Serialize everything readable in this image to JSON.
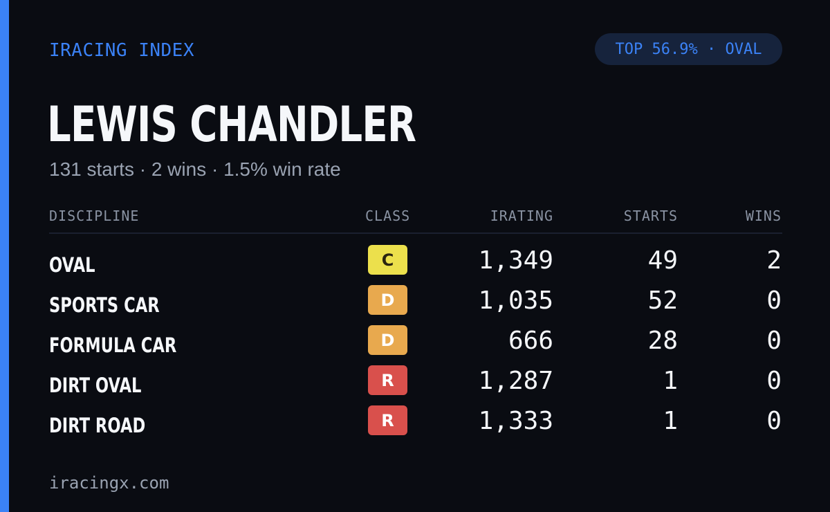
{
  "brand": "IRACING INDEX",
  "badge": "TOP 56.9% · OVAL",
  "driver": {
    "name": "LEWIS CHANDLER",
    "summary": "131 starts · 2 wins · 1.5% win rate"
  },
  "table": {
    "headers": {
      "discipline": "DISCIPLINE",
      "class": "CLASS",
      "irating": "IRATING",
      "starts": "STARTS",
      "wins": "WINS"
    },
    "rows": [
      {
        "discipline": "OVAL",
        "class": "C",
        "class_color": "#ece04c",
        "class_text_color": "#2a2410",
        "irating": "1,349",
        "starts": "49",
        "wins": "2"
      },
      {
        "discipline": "SPORTS CAR",
        "class": "D",
        "class_color": "#e8a94e",
        "class_text_color": "#ffffff",
        "irating": "1,035",
        "starts": "52",
        "wins": "0"
      },
      {
        "discipline": "FORMULA CAR",
        "class": "D",
        "class_color": "#e8a94e",
        "class_text_color": "#ffffff",
        "irating": "666",
        "starts": "28",
        "wins": "0"
      },
      {
        "discipline": "DIRT OVAL",
        "class": "R",
        "class_color": "#d9504c",
        "class_text_color": "#ffffff",
        "irating": "1,287",
        "starts": "1",
        "wins": "0"
      },
      {
        "discipline": "DIRT ROAD",
        "class": "R",
        "class_color": "#d9504c",
        "class_text_color": "#ffffff",
        "irating": "1,333",
        "starts": "1",
        "wins": "0"
      }
    ]
  },
  "footer": "iracingx.com",
  "colors": {
    "accent": "#3b82f6",
    "background": "#0a0c12",
    "badge_bg": "#16233c"
  }
}
